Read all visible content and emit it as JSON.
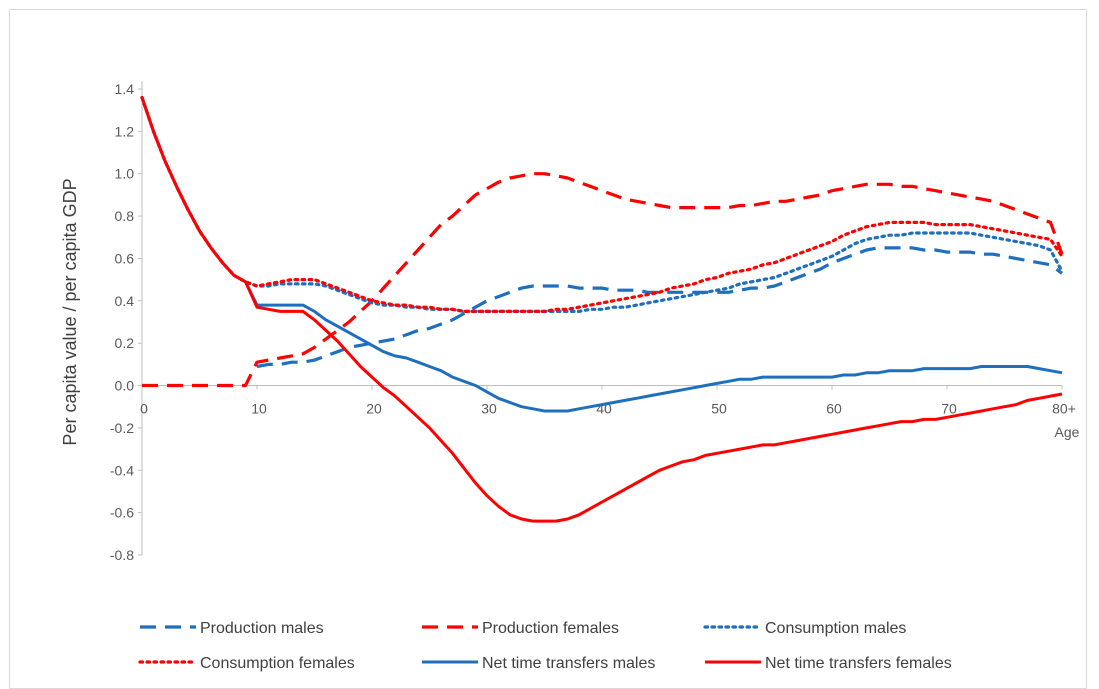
{
  "chart_data": {
    "type": "line",
    "title": "",
    "xlabel": "Age",
    "ylabel": "Per capita value / per capita GDP",
    "xlim": [
      0,
      80
    ],
    "ylim": [
      -0.8,
      1.4
    ],
    "grid": false,
    "legend_position": "bottom",
    "x_ticks": [
      {
        "value": 0,
        "label": "0"
      },
      {
        "value": 10,
        "label": "10"
      },
      {
        "value": 20,
        "label": "20"
      },
      {
        "value": 30,
        "label": "30"
      },
      {
        "value": 40,
        "label": "40"
      },
      {
        "value": 50,
        "label": "50"
      },
      {
        "value": 60,
        "label": "60"
      },
      {
        "value": 70,
        "label": "70"
      },
      {
        "value": 80,
        "label": "80+"
      }
    ],
    "y_ticks": [
      {
        "value": 1.4,
        "label": "1.4"
      },
      {
        "value": 1.2,
        "label": "1.2"
      },
      {
        "value": 1.0,
        "label": "1.0"
      },
      {
        "value": 0.8,
        "label": "0.8"
      },
      {
        "value": 0.6,
        "label": "0.6"
      },
      {
        "value": 0.4,
        "label": "0.4"
      },
      {
        "value": 0.2,
        "label": "0.2"
      },
      {
        "value": 0.0,
        "label": "0.0"
      },
      {
        "value": -0.2,
        "label": "-0.2"
      },
      {
        "value": -0.4,
        "label": "-0.4"
      },
      {
        "value": -0.6,
        "label": "-0.6"
      },
      {
        "value": -0.8,
        "label": "-0.8"
      }
    ],
    "x": [
      0,
      1,
      2,
      3,
      4,
      5,
      6,
      7,
      8,
      9,
      10,
      11,
      12,
      13,
      14,
      15,
      16,
      17,
      18,
      19,
      20,
      21,
      22,
      23,
      24,
      25,
      26,
      27,
      28,
      29,
      30,
      31,
      32,
      33,
      34,
      35,
      36,
      37,
      38,
      39,
      40,
      41,
      42,
      43,
      44,
      45,
      46,
      47,
      48,
      49,
      50,
      51,
      52,
      53,
      54,
      55,
      56,
      57,
      58,
      59,
      60,
      61,
      62,
      63,
      64,
      65,
      66,
      67,
      68,
      69,
      70,
      71,
      72,
      73,
      74,
      75,
      76,
      77,
      78,
      79,
      80
    ],
    "series": [
      {
        "name": "Production males",
        "color": "#1f6fbf",
        "style": "dashed",
        "values": [
          null,
          null,
          null,
          null,
          null,
          null,
          null,
          null,
          null,
          null,
          0.09,
          0.1,
          0.1,
          0.11,
          0.11,
          0.12,
          0.14,
          0.16,
          0.18,
          0.19,
          0.2,
          0.21,
          0.22,
          0.24,
          0.26,
          0.27,
          0.29,
          0.31,
          0.34,
          0.37,
          0.4,
          0.42,
          0.44,
          0.46,
          0.47,
          0.47,
          0.47,
          0.47,
          0.46,
          0.46,
          0.46,
          0.45,
          0.45,
          0.45,
          0.44,
          0.44,
          0.44,
          0.44,
          0.44,
          0.44,
          0.44,
          0.44,
          0.45,
          0.46,
          0.46,
          0.47,
          0.49,
          0.51,
          0.53,
          0.55,
          0.58,
          0.6,
          0.62,
          0.64,
          0.65,
          0.65,
          0.65,
          0.65,
          0.64,
          0.64,
          0.63,
          0.63,
          0.63,
          0.62,
          0.62,
          0.61,
          0.6,
          0.59,
          0.58,
          0.57,
          0.53
        ]
      },
      {
        "name": "Production females",
        "color": "#ff0000",
        "style": "dashed",
        "values": [
          0.0,
          0.0,
          0.0,
          0.0,
          0.0,
          0.0,
          0.0,
          0.0,
          0.0,
          0.0,
          0.11,
          0.12,
          0.13,
          0.14,
          0.15,
          0.18,
          0.22,
          0.26,
          0.3,
          0.35,
          0.4,
          0.46,
          0.52,
          0.58,
          0.64,
          0.7,
          0.76,
          0.8,
          0.85,
          0.9,
          0.93,
          0.96,
          0.98,
          0.99,
          1.0,
          1.0,
          0.99,
          0.98,
          0.96,
          0.94,
          0.92,
          0.9,
          0.88,
          0.87,
          0.86,
          0.85,
          0.84,
          0.84,
          0.84,
          0.84,
          0.84,
          0.84,
          0.85,
          0.85,
          0.86,
          0.87,
          0.87,
          0.88,
          0.89,
          0.9,
          0.92,
          0.93,
          0.94,
          0.95,
          0.95,
          0.95,
          0.94,
          0.94,
          0.93,
          0.92,
          0.91,
          0.9,
          0.89,
          0.88,
          0.87,
          0.85,
          0.83,
          0.81,
          0.79,
          0.77,
          0.62
        ]
      },
      {
        "name": "Consumption males",
        "color": "#1f6fbf",
        "style": "dotted",
        "values": [
          1.36,
          1.2,
          1.06,
          0.94,
          0.83,
          0.73,
          0.65,
          0.58,
          0.52,
          0.49,
          0.47,
          0.47,
          0.48,
          0.48,
          0.48,
          0.48,
          0.47,
          0.45,
          0.43,
          0.41,
          0.39,
          0.38,
          0.38,
          0.37,
          0.37,
          0.36,
          0.36,
          0.36,
          0.35,
          0.35,
          0.35,
          0.35,
          0.35,
          0.35,
          0.35,
          0.35,
          0.35,
          0.35,
          0.35,
          0.36,
          0.36,
          0.37,
          0.37,
          0.38,
          0.39,
          0.4,
          0.41,
          0.42,
          0.43,
          0.44,
          0.45,
          0.46,
          0.48,
          0.49,
          0.5,
          0.51,
          0.53,
          0.55,
          0.57,
          0.59,
          0.61,
          0.64,
          0.67,
          0.69,
          0.7,
          0.71,
          0.71,
          0.72,
          0.72,
          0.72,
          0.72,
          0.72,
          0.72,
          0.71,
          0.7,
          0.69,
          0.68,
          0.67,
          0.66,
          0.64,
          0.54
        ]
      },
      {
        "name": "Consumption females",
        "color": "#ff0000",
        "style": "dotted",
        "values": [
          1.36,
          1.2,
          1.06,
          0.94,
          0.83,
          0.73,
          0.65,
          0.58,
          0.52,
          0.49,
          0.47,
          0.48,
          0.49,
          0.5,
          0.5,
          0.5,
          0.48,
          0.46,
          0.44,
          0.42,
          0.4,
          0.39,
          0.38,
          0.38,
          0.37,
          0.37,
          0.36,
          0.36,
          0.35,
          0.35,
          0.35,
          0.35,
          0.35,
          0.35,
          0.35,
          0.35,
          0.36,
          0.36,
          0.37,
          0.38,
          0.39,
          0.4,
          0.41,
          0.42,
          0.43,
          0.44,
          0.46,
          0.47,
          0.48,
          0.5,
          0.51,
          0.53,
          0.54,
          0.55,
          0.57,
          0.58,
          0.6,
          0.62,
          0.64,
          0.66,
          0.68,
          0.71,
          0.73,
          0.75,
          0.76,
          0.77,
          0.77,
          0.77,
          0.77,
          0.76,
          0.76,
          0.76,
          0.76,
          0.75,
          0.74,
          0.73,
          0.72,
          0.71,
          0.7,
          0.69,
          0.61
        ]
      },
      {
        "name": "Net time transfers males",
        "color": "#1f6fbf",
        "style": "solid",
        "values": [
          1.36,
          1.2,
          1.06,
          0.94,
          0.83,
          0.73,
          0.65,
          0.58,
          0.52,
          0.49,
          0.38,
          0.38,
          0.38,
          0.38,
          0.38,
          0.35,
          0.31,
          0.28,
          0.25,
          0.22,
          0.19,
          0.16,
          0.14,
          0.13,
          0.11,
          0.09,
          0.07,
          0.04,
          0.02,
          0.0,
          -0.03,
          -0.06,
          -0.08,
          -0.1,
          -0.11,
          -0.12,
          -0.12,
          -0.12,
          -0.11,
          -0.1,
          -0.09,
          -0.08,
          -0.07,
          -0.06,
          -0.05,
          -0.04,
          -0.03,
          -0.02,
          -0.01,
          0.0,
          0.01,
          0.02,
          0.03,
          0.03,
          0.04,
          0.04,
          0.04,
          0.04,
          0.04,
          0.04,
          0.04,
          0.05,
          0.05,
          0.06,
          0.06,
          0.07,
          0.07,
          0.07,
          0.08,
          0.08,
          0.08,
          0.08,
          0.08,
          0.09,
          0.09,
          0.09,
          0.09,
          0.09,
          0.08,
          0.07,
          0.06
        ]
      },
      {
        "name": "Net time transfers females",
        "color": "#ff0000",
        "style": "solid",
        "values": [
          1.36,
          1.2,
          1.06,
          0.94,
          0.83,
          0.73,
          0.65,
          0.58,
          0.52,
          0.49,
          0.37,
          0.36,
          0.35,
          0.35,
          0.35,
          0.31,
          0.26,
          0.21,
          0.15,
          0.09,
          0.04,
          -0.01,
          -0.05,
          -0.1,
          -0.15,
          -0.2,
          -0.26,
          -0.32,
          -0.39,
          -0.46,
          -0.52,
          -0.57,
          -0.61,
          -0.63,
          -0.64,
          -0.64,
          -0.64,
          -0.63,
          -0.61,
          -0.58,
          -0.55,
          -0.52,
          -0.49,
          -0.46,
          -0.43,
          -0.4,
          -0.38,
          -0.36,
          -0.35,
          -0.33,
          -0.32,
          -0.31,
          -0.3,
          -0.29,
          -0.28,
          -0.28,
          -0.27,
          -0.26,
          -0.25,
          -0.24,
          -0.23,
          -0.22,
          -0.21,
          -0.2,
          -0.19,
          -0.18,
          -0.17,
          -0.17,
          -0.16,
          -0.16,
          -0.15,
          -0.14,
          -0.13,
          -0.12,
          -0.11,
          -0.1,
          -0.09,
          -0.07,
          -0.06,
          -0.05,
          -0.04
        ]
      }
    ]
  }
}
